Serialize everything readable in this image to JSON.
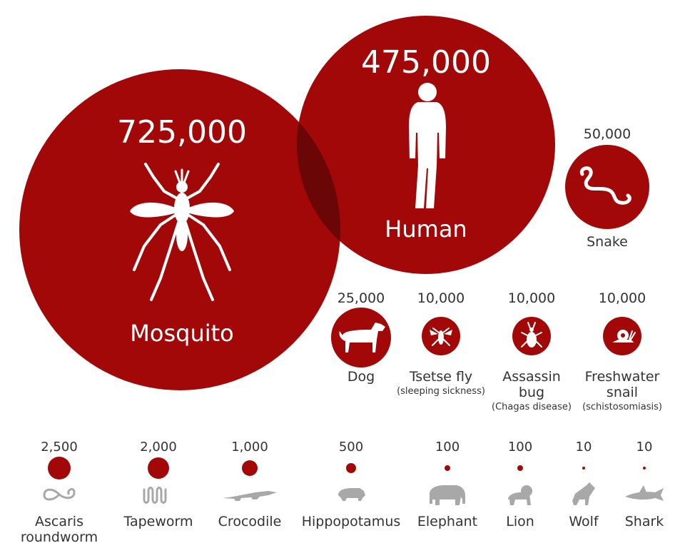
{
  "chart_data": {
    "type": "bubble",
    "title": "",
    "colors": {
      "bubble": "#a30808",
      "overlap": "#6b0606",
      "icon_light": "#ffffff",
      "icon_gray": "#a8a8a8"
    },
    "large": [
      {
        "name": "Mosquito",
        "value": 725000,
        "value_label": "725,000",
        "icon": "mosquito-icon"
      },
      {
        "name": "Human",
        "value": 475000,
        "value_label": "475,000",
        "icon": "human-icon"
      },
      {
        "name": "Snake",
        "value": 50000,
        "value_label": "50,000",
        "icon": "snake-icon"
      }
    ],
    "medium": [
      {
        "name": "Dog",
        "sub": "",
        "value": 25000,
        "value_label": "25,000",
        "icon": "dog-icon"
      },
      {
        "name": "Tsetse fly",
        "sub": "(sleeping sickness)",
        "value": 10000,
        "value_label": "10,000",
        "icon": "tsetse-fly-icon"
      },
      {
        "name": "Assassin bug",
        "name_lines": [
          "Assassin",
          "bug"
        ],
        "sub": "(Chagas disease)",
        "value": 10000,
        "value_label": "10,000",
        "icon": "assassin-bug-icon"
      },
      {
        "name": "Freshwater snail",
        "name_lines": [
          "Freshwater",
          "snail"
        ],
        "sub": "(schistosomiasis)",
        "value": 10000,
        "value_label": "10,000",
        "icon": "snail-icon"
      }
    ],
    "small": [
      {
        "name": "Ascaris roundworm",
        "name_lines": [
          "Ascaris",
          "roundworm"
        ],
        "value": 2500,
        "value_label": "2,500",
        "icon": "roundworm-icon"
      },
      {
        "name": "Tapeworm",
        "value": 2000,
        "value_label": "2,000",
        "icon": "tapeworm-icon"
      },
      {
        "name": "Crocodile",
        "value": 1000,
        "value_label": "1,000",
        "icon": "crocodile-icon"
      },
      {
        "name": "Hippopotamus",
        "value": 500,
        "value_label": "500",
        "icon": "hippopotamus-icon"
      },
      {
        "name": "Elephant",
        "value": 100,
        "value_label": "100",
        "icon": "elephant-icon"
      },
      {
        "name": "Lion",
        "value": 100,
        "value_label": "100",
        "icon": "lion-icon"
      },
      {
        "name": "Wolf",
        "value": 10,
        "value_label": "10",
        "icon": "wolf-icon"
      },
      {
        "name": "Shark",
        "value": 10,
        "value_label": "10",
        "icon": "shark-icon"
      }
    ]
  }
}
